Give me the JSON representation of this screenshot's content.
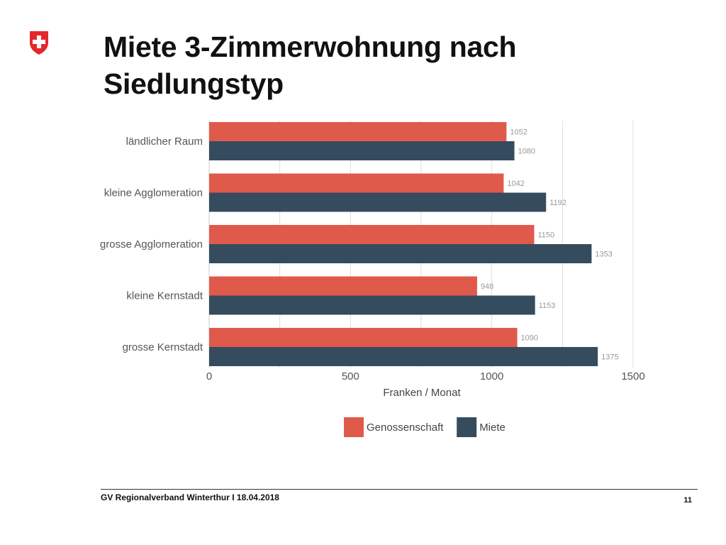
{
  "slide": {
    "title_line1": "Miete 3-Zimmerwohnung nach",
    "title_line2": "Siedlungstyp",
    "logo_icon": "swiss-cross-shield-icon",
    "footer": "GV Regionalverband Winterthur I 18.04.2018",
    "page_number": "11"
  },
  "colors": {
    "genossenschaft": "#e05a4b",
    "miete": "#354b5e",
    "logo_red": "#e3272c",
    "grid": "#dddddd"
  },
  "chart_data": {
    "type": "bar",
    "orientation": "horizontal",
    "title": "",
    "xlabel": "Franken / Monat",
    "ylabel": "",
    "xlim": [
      0,
      1500
    ],
    "xticks": [
      "0",
      "500",
      "1000",
      "1500"
    ],
    "grid": true,
    "legend_position": "bottom-center",
    "categories": [
      "ländlicher Raum",
      "kleine Agglomeration",
      "grosse Agglomeration",
      "kleine Kernstadt",
      "grosse Kernstadt"
    ],
    "series": [
      {
        "name": "Genossenschaft",
        "values": [
          1052,
          1042,
          1150,
          948,
          1090
        ]
      },
      {
        "name": "Miete",
        "values": [
          1080,
          1192,
          1353,
          1153,
          1375
        ]
      }
    ]
  }
}
